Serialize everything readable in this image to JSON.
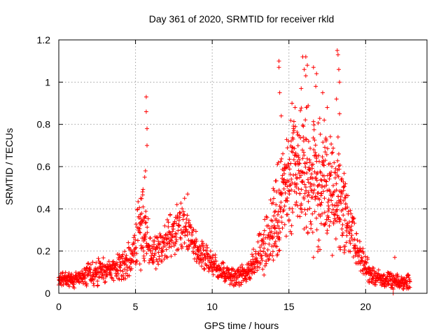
{
  "chart_data": {
    "type": "scatter",
    "title": "Day 361 of 2020, SRMTID for receiver rkld",
    "xlabel": "GPS time / hours",
    "ylabel": "SRMTID / TECUs",
    "xlim": [
      0,
      24
    ],
    "ylim": [
      0,
      1.2
    ],
    "xticks": [
      0,
      5,
      10,
      15,
      20
    ],
    "xtick_labels": [
      "0",
      "5",
      "10",
      "15",
      "20"
    ],
    "yticks": [
      0,
      0.2,
      0.4,
      0.6,
      0.8,
      1,
      1.2
    ],
    "ytick_labels": [
      "0",
      "0.2",
      "0.4",
      "0.6",
      "0.8",
      "1",
      "1.2"
    ],
    "grid": true,
    "marker": "plus",
    "color": "#ff0000",
    "series": [
      {
        "name": "SRMTID",
        "envelope": {
          "x": [
            0,
            0.5,
            1,
            1.5,
            2,
            2.5,
            3,
            3.5,
            4,
            4.5,
            5,
            5.25,
            5.5,
            5.75,
            6,
            6.5,
            7,
            7.5,
            8,
            8.5,
            9,
            9.5,
            10,
            10.5,
            11,
            11.5,
            12,
            12.5,
            13,
            13.5,
            14,
            14.5,
            15,
            15.5,
            16,
            16.5,
            17,
            17.5,
            18,
            18.5,
            19,
            19.5,
            20,
            20.5,
            21,
            21.5,
            22,
            22.5,
            22.9
          ],
          "y": [
            0.07,
            0.07,
            0.06,
            0.08,
            0.09,
            0.1,
            0.11,
            0.12,
            0.13,
            0.15,
            0.22,
            0.3,
            0.32,
            0.28,
            0.18,
            0.2,
            0.24,
            0.28,
            0.3,
            0.28,
            0.2,
            0.17,
            0.14,
            0.11,
            0.09,
            0.08,
            0.09,
            0.12,
            0.18,
            0.25,
            0.32,
            0.42,
            0.52,
            0.55,
            0.58,
            0.55,
            0.52,
            0.48,
            0.45,
            0.42,
            0.3,
            0.2,
            0.12,
            0.08,
            0.07,
            0.06,
            0.05,
            0.05,
            0.06
          ]
        },
        "spread": [
          0.03,
          0.03,
          0.03,
          0.04,
          0.04,
          0.05,
          0.05,
          0.05,
          0.06,
          0.06,
          0.1,
          0.15,
          0.2,
          0.12,
          0.06,
          0.07,
          0.08,
          0.09,
          0.1,
          0.09,
          0.06,
          0.06,
          0.05,
          0.04,
          0.04,
          0.04,
          0.04,
          0.05,
          0.08,
          0.12,
          0.16,
          0.22,
          0.24,
          0.26,
          0.26,
          0.25,
          0.24,
          0.22,
          0.22,
          0.2,
          0.12,
          0.08,
          0.05,
          0.04,
          0.03,
          0.03,
          0.03,
          0.03,
          0.03
        ],
        "peaks": [
          {
            "x": 5.7,
            "y": 0.93
          },
          {
            "x": 5.7,
            "y": 0.86
          },
          {
            "x": 5.75,
            "y": 0.78
          },
          {
            "x": 5.75,
            "y": 0.7
          },
          {
            "x": 5.65,
            "y": 0.58
          },
          {
            "x": 5.6,
            "y": 0.55
          },
          {
            "x": 8.4,
            "y": 0.47
          },
          {
            "x": 8.2,
            "y": 0.45
          },
          {
            "x": 7.7,
            "y": 0.42
          },
          {
            "x": 14.35,
            "y": 1.1
          },
          {
            "x": 14.35,
            "y": 1.07
          },
          {
            "x": 14.4,
            "y": 0.95
          },
          {
            "x": 14.5,
            "y": 0.84
          },
          {
            "x": 15.2,
            "y": 0.9
          },
          {
            "x": 15.4,
            "y": 0.88
          },
          {
            "x": 15.9,
            "y": 1.12
          },
          {
            "x": 16.1,
            "y": 1.12
          },
          {
            "x": 16.0,
            "y": 1.06
          },
          {
            "x": 16.2,
            "y": 1.08
          },
          {
            "x": 16.1,
            "y": 1.03
          },
          {
            "x": 15.8,
            "y": 0.97
          },
          {
            "x": 16.6,
            "y": 1.07
          },
          {
            "x": 16.8,
            "y": 1.04
          },
          {
            "x": 16.75,
            "y": 0.98
          },
          {
            "x": 17.2,
            "y": 0.95
          },
          {
            "x": 17.5,
            "y": 0.88
          },
          {
            "x": 17.3,
            "y": 0.82
          },
          {
            "x": 18.15,
            "y": 1.15
          },
          {
            "x": 18.2,
            "y": 1.13
          },
          {
            "x": 18.25,
            "y": 1.06
          },
          {
            "x": 18.3,
            "y": 1.0
          },
          {
            "x": 18.1,
            "y": 0.92
          },
          {
            "x": 18.3,
            "y": 0.85
          },
          {
            "x": 18.2,
            "y": 0.74
          },
          {
            "x": 18.25,
            "y": 0.66
          },
          {
            "x": 16.6,
            "y": 0.17
          },
          {
            "x": 16.9,
            "y": 0.22
          },
          {
            "x": 21.8,
            "y": 0.0
          },
          {
            "x": 21.9,
            "y": 0.17
          }
        ]
      }
    ]
  }
}
